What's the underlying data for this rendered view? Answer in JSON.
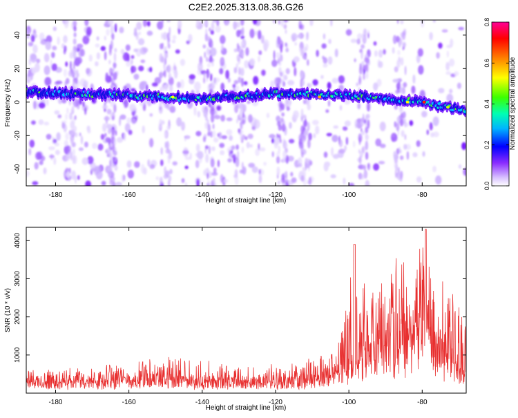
{
  "title": "C2E2.2025.313.08.36.G26",
  "chart_data": [
    {
      "type": "heatmap",
      "title": "C2E2.2025.313.08.36.G26",
      "xlabel": "Height of straight line (km)",
      "ylabel": "Frequency (Hz)",
      "xlim": [
        -188,
        -68
      ],
      "ylim": [
        -50,
        49
      ],
      "xticks": [
        -180,
        -160,
        -140,
        -120,
        -100,
        -80
      ],
      "yticks": [
        -40,
        -20,
        0,
        20,
        40
      ],
      "colorbar": {
        "label": "Normalized spectral amplitude",
        "range": [
          0.0,
          0.8
        ],
        "ticks": [
          0.0,
          0.2,
          0.4,
          0.6,
          0.8
        ],
        "colors": [
          "#ffffff",
          "#c7a6ff",
          "#7a00ff",
          "#0000ff",
          "#00c8ff",
          "#00ffa0",
          "#40ff00",
          "#ffff00",
          "#ff8000",
          "#ff0000",
          "#ff00aa"
        ]
      },
      "ridge": {
        "description_points": [
          {
            "x": -188,
            "y": 6
          },
          {
            "x": -160,
            "y": 4
          },
          {
            "x": -140,
            "y": 2
          },
          {
            "x": -120,
            "y": 5
          },
          {
            "x": -100,
            "y": 4
          },
          {
            "x": -80,
            "y": 0
          },
          {
            "x": -68,
            "y": -5
          }
        ]
      }
    },
    {
      "type": "line",
      "xlabel": "Height of straight line (km)",
      "ylabel": "SNR (10 * v/v)",
      "xlim": [
        -188,
        -68
      ],
      "ylim": [
        0,
        4350
      ],
      "xticks": [
        -180,
        -160,
        -140,
        -120,
        -100,
        -80
      ],
      "yticks": [
        1000,
        2000,
        3000,
        4000
      ],
      "series": [
        {
          "name": "SNR",
          "color": "#e83030",
          "envelope": [
            {
              "x": -188,
              "base": 200,
              "peak": 600
            },
            {
              "x": -170,
              "base": 220,
              "peak": 700
            },
            {
              "x": -150,
              "base": 230,
              "peak": 950
            },
            {
              "x": -140,
              "base": 230,
              "peak": 900
            },
            {
              "x": -130,
              "base": 220,
              "peak": 700
            },
            {
              "x": -115,
              "base": 240,
              "peak": 800
            },
            {
              "x": -105,
              "base": 300,
              "peak": 1100
            },
            {
              "x": -98.5,
              "base": 500,
              "peak": 3900
            },
            {
              "x": -95,
              "base": 900,
              "peak": 2700
            },
            {
              "x": -90,
              "base": 800,
              "peak": 3200
            },
            {
              "x": -86,
              "base": 900,
              "peak": 3700
            },
            {
              "x": -82,
              "base": 1200,
              "peak": 3500
            },
            {
              "x": -79,
              "base": 1500,
              "peak": 4300
            },
            {
              "x": -76,
              "base": 900,
              "peak": 3300
            },
            {
              "x": -72,
              "base": 600,
              "peak": 2500
            },
            {
              "x": -70,
              "base": 500,
              "peak": 3300
            },
            {
              "x": -68,
              "base": 500,
              "peak": 1600
            }
          ]
        }
      ]
    }
  ]
}
